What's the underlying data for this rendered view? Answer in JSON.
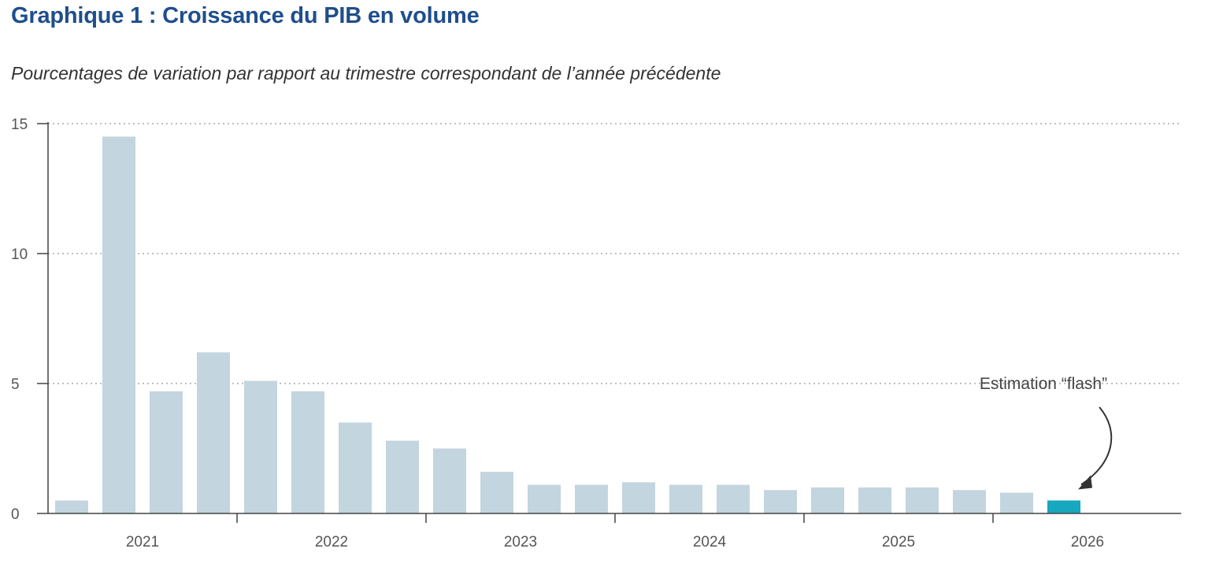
{
  "chart_data": {
    "type": "bar",
    "title": "Graphique 1 : Croissance du PIB en volume",
    "subtitle": "Pourcentages de variation par rapport au trimestre correspondant de l’année précédente",
    "xlabel": "",
    "ylabel": "",
    "ylim": [
      0,
      15
    ],
    "yticks": [
      0,
      5,
      10,
      15
    ],
    "grid": true,
    "year_labels": [
      "2021",
      "2022",
      "2023",
      "2024",
      "2025",
      "2026"
    ],
    "values": [
      0.5,
      14.5,
      4.7,
      6.2,
      5.1,
      4.7,
      3.5,
      2.8,
      2.5,
      1.6,
      1.1,
      1.1,
      1.2,
      1.1,
      1.1,
      0.9,
      1.0,
      1.0,
      1.0,
      0.9,
      0.8,
      0.5
    ],
    "highlight_index": 21,
    "colors": {
      "bar": "#c3d5de",
      "highlight": "#17a8bf",
      "title": "#1f4e8c",
      "axis": "#444444",
      "grid": "#aaaaaa"
    },
    "annotation": {
      "text": "Estimation “flash”",
      "target_index": 21
    }
  }
}
